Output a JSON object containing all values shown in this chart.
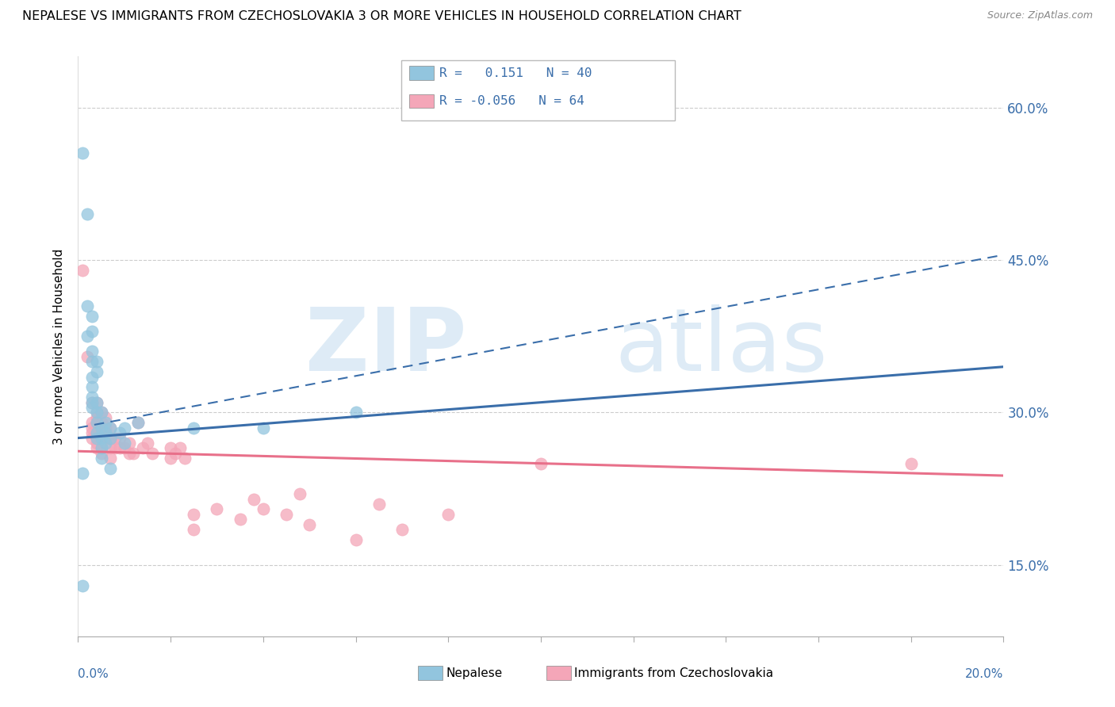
{
  "title": "NEPALESE VS IMMIGRANTS FROM CZECHOSLOVAKIA 3 OR MORE VEHICLES IN HOUSEHOLD CORRELATION CHART",
  "source": "Source: ZipAtlas.com",
  "ylabel": "3 or more Vehicles in Household",
  "legend_R_blue": "R =   0.151",
  "legend_N_blue": "N = 40",
  "legend_R_pink": "R = -0.056",
  "legend_N_pink": "N = 64",
  "legend_label_blue": "Nepalese",
  "legend_label_pink": "Immigrants from Czechoslovakia",
  "blue_color": "#92c5de",
  "pink_color": "#f4a6b8",
  "blue_line_color": "#3a6eaa",
  "pink_line_color": "#e8708a",
  "x_min": 0.0,
  "x_max": 0.2,
  "y_min": 0.08,
  "y_max": 0.65,
  "y_ticks": [
    0.15,
    0.3,
    0.45,
    0.6
  ],
  "y_tick_labels": [
    "15.0%",
    "30.0%",
    "45.0%",
    "60.0%"
  ],
  "blue_trend_x": [
    0.0,
    0.2
  ],
  "blue_trend_y": [
    0.275,
    0.345
  ],
  "blue_dash_trend_x": [
    0.0,
    0.2
  ],
  "blue_dash_trend_y": [
    0.285,
    0.455
  ],
  "pink_trend_x": [
    0.0,
    0.2
  ],
  "pink_trend_y": [
    0.262,
    0.238
  ],
  "blue_scatter": [
    [
      0.001,
      0.555
    ],
    [
      0.002,
      0.495
    ],
    [
      0.002,
      0.405
    ],
    [
      0.002,
      0.375
    ],
    [
      0.003,
      0.395
    ],
    [
      0.003,
      0.38
    ],
    [
      0.003,
      0.36
    ],
    [
      0.003,
      0.35
    ],
    [
      0.003,
      0.335
    ],
    [
      0.003,
      0.325
    ],
    [
      0.003,
      0.315
    ],
    [
      0.003,
      0.31
    ],
    [
      0.003,
      0.305
    ],
    [
      0.004,
      0.35
    ],
    [
      0.004,
      0.34
    ],
    [
      0.004,
      0.31
    ],
    [
      0.004,
      0.3
    ],
    [
      0.004,
      0.29
    ],
    [
      0.004,
      0.28
    ],
    [
      0.004,
      0.275
    ],
    [
      0.005,
      0.3
    ],
    [
      0.005,
      0.285
    ],
    [
      0.005,
      0.275
    ],
    [
      0.005,
      0.265
    ],
    [
      0.005,
      0.255
    ],
    [
      0.006,
      0.29
    ],
    [
      0.006,
      0.28
    ],
    [
      0.006,
      0.27
    ],
    [
      0.007,
      0.285
    ],
    [
      0.007,
      0.275
    ],
    [
      0.009,
      0.28
    ],
    [
      0.01,
      0.285
    ],
    [
      0.013,
      0.29
    ],
    [
      0.025,
      0.285
    ],
    [
      0.04,
      0.285
    ],
    [
      0.06,
      0.3
    ],
    [
      0.001,
      0.13
    ],
    [
      0.007,
      0.245
    ],
    [
      0.01,
      0.27
    ],
    [
      0.001,
      0.24
    ]
  ],
  "pink_scatter": [
    [
      0.001,
      0.44
    ],
    [
      0.002,
      0.355
    ],
    [
      0.003,
      0.31
    ],
    [
      0.003,
      0.29
    ],
    [
      0.003,
      0.285
    ],
    [
      0.003,
      0.28
    ],
    [
      0.003,
      0.275
    ],
    [
      0.004,
      0.31
    ],
    [
      0.004,
      0.3
    ],
    [
      0.004,
      0.295
    ],
    [
      0.004,
      0.29
    ],
    [
      0.004,
      0.285
    ],
    [
      0.004,
      0.28
    ],
    [
      0.004,
      0.275
    ],
    [
      0.004,
      0.27
    ],
    [
      0.004,
      0.265
    ],
    [
      0.005,
      0.3
    ],
    [
      0.005,
      0.29
    ],
    [
      0.005,
      0.285
    ],
    [
      0.005,
      0.28
    ],
    [
      0.005,
      0.275
    ],
    [
      0.005,
      0.27
    ],
    [
      0.005,
      0.265
    ],
    [
      0.005,
      0.26
    ],
    [
      0.006,
      0.295
    ],
    [
      0.006,
      0.285
    ],
    [
      0.006,
      0.28
    ],
    [
      0.006,
      0.275
    ],
    [
      0.007,
      0.285
    ],
    [
      0.007,
      0.275
    ],
    [
      0.007,
      0.265
    ],
    [
      0.007,
      0.255
    ],
    [
      0.008,
      0.275
    ],
    [
      0.008,
      0.265
    ],
    [
      0.009,
      0.275
    ],
    [
      0.009,
      0.265
    ],
    [
      0.01,
      0.265
    ],
    [
      0.011,
      0.27
    ],
    [
      0.011,
      0.26
    ],
    [
      0.012,
      0.26
    ],
    [
      0.013,
      0.29
    ],
    [
      0.014,
      0.265
    ],
    [
      0.015,
      0.27
    ],
    [
      0.016,
      0.26
    ],
    [
      0.02,
      0.265
    ],
    [
      0.02,
      0.255
    ],
    [
      0.021,
      0.26
    ],
    [
      0.022,
      0.265
    ],
    [
      0.023,
      0.255
    ],
    [
      0.025,
      0.2
    ],
    [
      0.025,
      0.185
    ],
    [
      0.03,
      0.205
    ],
    [
      0.035,
      0.195
    ],
    [
      0.038,
      0.215
    ],
    [
      0.04,
      0.205
    ],
    [
      0.045,
      0.2
    ],
    [
      0.048,
      0.22
    ],
    [
      0.05,
      0.19
    ],
    [
      0.06,
      0.175
    ],
    [
      0.065,
      0.21
    ],
    [
      0.07,
      0.185
    ],
    [
      0.08,
      0.2
    ],
    [
      0.1,
      0.25
    ],
    [
      0.18,
      0.25
    ]
  ]
}
